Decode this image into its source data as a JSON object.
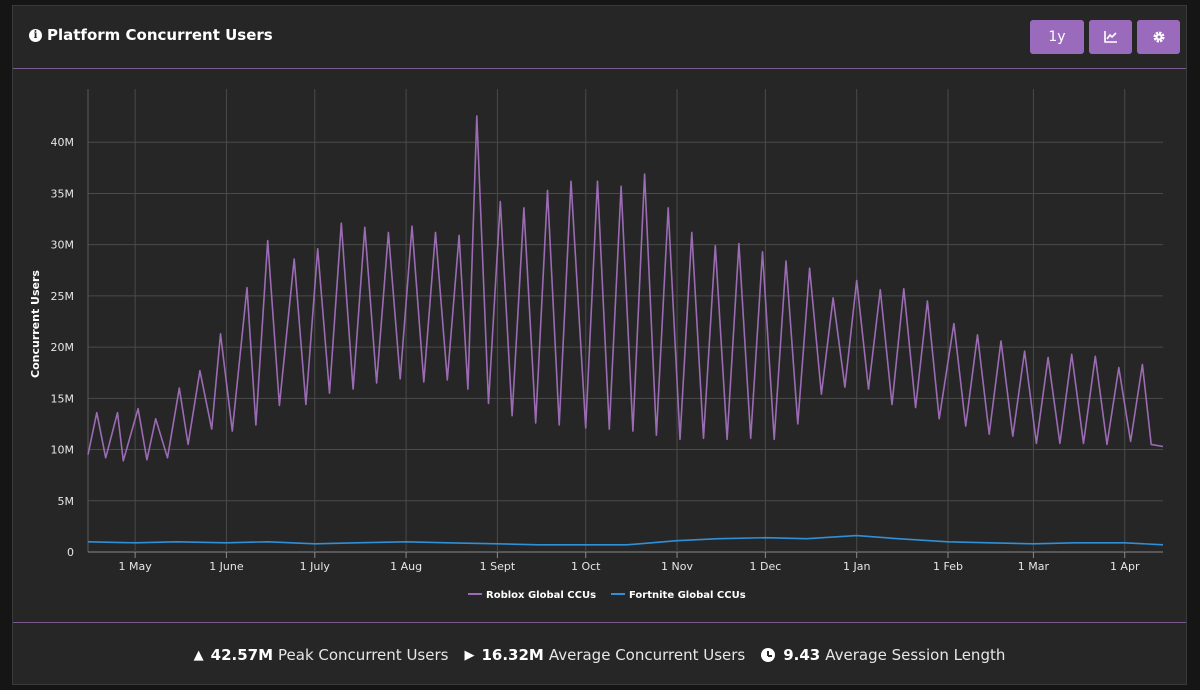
{
  "header": {
    "title": "Platform Concurrent Users",
    "range_button_label": "1y"
  },
  "stats": {
    "peak_value": "42.57M",
    "peak_label": "Peak Concurrent Users",
    "average_value": "16.32M",
    "average_label": "Average Concurrent Users",
    "session_value": "9.43",
    "session_label": "Average Session Length"
  },
  "chart_data": {
    "type": "line",
    "title": "",
    "ylabel": "Concurrent Users",
    "xlabel": "",
    "ylim": [
      0,
      45000000
    ],
    "ytick_values": [
      0,
      5000000,
      10000000,
      15000000,
      20000000,
      25000000,
      30000000,
      35000000,
      40000000
    ],
    "ytick_labels": [
      "0",
      "5M",
      "10M",
      "15M",
      "20M",
      "25M",
      "30M",
      "35M",
      "40M"
    ],
    "x_start": "2023-04-15",
    "x_end": "2024-04-14",
    "x_ticks": [
      {
        "date": "2023-05-01",
        "label": "1 May"
      },
      {
        "date": "2023-06-01",
        "label": "1 June"
      },
      {
        "date": "2023-07-01",
        "label": "1 July"
      },
      {
        "date": "2023-08-01",
        "label": "1 Aug"
      },
      {
        "date": "2023-09-01",
        "label": "1 Sept"
      },
      {
        "date": "2023-10-01",
        "label": "1 Oct"
      },
      {
        "date": "2023-11-01",
        "label": "1 Nov"
      },
      {
        "date": "2023-12-01",
        "label": "1 Dec"
      },
      {
        "date": "2024-01-01",
        "label": "1 Jan"
      },
      {
        "date": "2024-02-01",
        "label": "1 Feb"
      },
      {
        "date": "2024-03-01",
        "label": "1 Mar"
      },
      {
        "date": "2024-04-01",
        "label": "1 Apr"
      }
    ],
    "grid": true,
    "legend": "bottom-center",
    "series": [
      {
        "name": "Roblox Global CCUs",
        "color": "#9b6bb3",
        "points": [
          [
            "2023-04-15",
            9500000
          ],
          [
            "2023-04-18",
            13600000
          ],
          [
            "2023-04-21",
            9200000
          ],
          [
            "2023-04-25",
            13600000
          ],
          [
            "2023-04-27",
            8900000
          ],
          [
            "2023-05-02",
            14000000
          ],
          [
            "2023-05-05",
            9000000
          ],
          [
            "2023-05-08",
            13000000
          ],
          [
            "2023-05-12",
            9200000
          ],
          [
            "2023-05-16",
            16000000
          ],
          [
            "2023-05-19",
            10500000
          ],
          [
            "2023-05-23",
            17700000
          ],
          [
            "2023-05-27",
            12000000
          ],
          [
            "2023-05-30",
            21300000
          ],
          [
            "2023-06-03",
            11800000
          ],
          [
            "2023-06-08",
            25800000
          ],
          [
            "2023-06-11",
            12400000
          ],
          [
            "2023-06-15",
            30400000
          ],
          [
            "2023-06-19",
            14300000
          ],
          [
            "2023-06-24",
            28600000
          ],
          [
            "2023-06-28",
            14400000
          ],
          [
            "2023-07-02",
            29600000
          ],
          [
            "2023-07-06",
            15500000
          ],
          [
            "2023-07-10",
            32100000
          ],
          [
            "2023-07-14",
            15900000
          ],
          [
            "2023-07-18",
            31700000
          ],
          [
            "2023-07-22",
            16500000
          ],
          [
            "2023-07-26",
            31200000
          ],
          [
            "2023-07-30",
            16900000
          ],
          [
            "2023-08-03",
            31800000
          ],
          [
            "2023-08-07",
            16600000
          ],
          [
            "2023-08-11",
            31200000
          ],
          [
            "2023-08-15",
            16800000
          ],
          [
            "2023-08-19",
            30900000
          ],
          [
            "2023-08-22",
            15900000
          ],
          [
            "2023-08-25",
            42570000
          ],
          [
            "2023-08-29",
            14500000
          ],
          [
            "2023-09-02",
            34200000
          ],
          [
            "2023-09-06",
            13300000
          ],
          [
            "2023-09-10",
            33600000
          ],
          [
            "2023-09-14",
            12600000
          ],
          [
            "2023-09-18",
            35300000
          ],
          [
            "2023-09-22",
            12400000
          ],
          [
            "2023-09-26",
            36200000
          ],
          [
            "2023-10-01",
            12100000
          ],
          [
            "2023-10-05",
            36200000
          ],
          [
            "2023-10-09",
            12000000
          ],
          [
            "2023-10-13",
            35700000
          ],
          [
            "2023-10-17",
            11800000
          ],
          [
            "2023-10-21",
            36900000
          ],
          [
            "2023-10-25",
            11400000
          ],
          [
            "2023-10-29",
            33600000
          ],
          [
            "2023-11-02",
            11000000
          ],
          [
            "2023-11-06",
            31200000
          ],
          [
            "2023-11-10",
            11100000
          ],
          [
            "2023-11-14",
            29900000
          ],
          [
            "2023-11-18",
            11000000
          ],
          [
            "2023-11-22",
            30100000
          ],
          [
            "2023-11-26",
            11100000
          ],
          [
            "2023-11-30",
            29300000
          ],
          [
            "2023-12-04",
            11000000
          ],
          [
            "2023-12-08",
            28400000
          ],
          [
            "2023-12-12",
            12500000
          ],
          [
            "2023-12-16",
            27700000
          ],
          [
            "2023-12-20",
            15400000
          ],
          [
            "2023-12-24",
            24800000
          ],
          [
            "2023-12-28",
            16100000
          ],
          [
            "2024-01-01",
            26500000
          ],
          [
            "2024-01-05",
            15900000
          ],
          [
            "2024-01-09",
            25600000
          ],
          [
            "2024-01-13",
            14400000
          ],
          [
            "2024-01-17",
            25700000
          ],
          [
            "2024-01-21",
            14100000
          ],
          [
            "2024-01-25",
            24500000
          ],
          [
            "2024-01-29",
            13000000
          ],
          [
            "2024-02-03",
            22300000
          ],
          [
            "2024-02-07",
            12300000
          ],
          [
            "2024-02-11",
            21200000
          ],
          [
            "2024-02-15",
            11500000
          ],
          [
            "2024-02-19",
            20600000
          ],
          [
            "2024-02-23",
            11300000
          ],
          [
            "2024-02-27",
            19600000
          ],
          [
            "2024-03-02",
            10600000
          ],
          [
            "2024-03-06",
            19000000
          ],
          [
            "2024-03-10",
            10600000
          ],
          [
            "2024-03-14",
            19300000
          ],
          [
            "2024-03-18",
            10600000
          ],
          [
            "2024-03-22",
            19100000
          ],
          [
            "2024-03-26",
            10500000
          ],
          [
            "2024-03-30",
            18000000
          ],
          [
            "2024-04-03",
            10800000
          ],
          [
            "2024-04-07",
            18300000
          ],
          [
            "2024-04-10",
            10500000
          ],
          [
            "2024-04-14",
            10300000
          ]
        ]
      },
      {
        "name": "Fortnite Global CCUs",
        "color": "#2f8fd8",
        "points": [
          [
            "2023-04-15",
            1000000
          ],
          [
            "2023-05-01",
            900000
          ],
          [
            "2023-05-15",
            1000000
          ],
          [
            "2023-06-01",
            900000
          ],
          [
            "2023-06-15",
            1000000
          ],
          [
            "2023-07-01",
            800000
          ],
          [
            "2023-07-15",
            900000
          ],
          [
            "2023-08-01",
            1000000
          ],
          [
            "2023-08-15",
            900000
          ],
          [
            "2023-09-01",
            800000
          ],
          [
            "2023-09-15",
            700000
          ],
          [
            "2023-10-01",
            700000
          ],
          [
            "2023-10-15",
            700000
          ],
          [
            "2023-11-01",
            1100000
          ],
          [
            "2023-11-15",
            1300000
          ],
          [
            "2023-12-01",
            1400000
          ],
          [
            "2023-12-15",
            1300000
          ],
          [
            "2024-01-01",
            1600000
          ],
          [
            "2024-01-15",
            1300000
          ],
          [
            "2024-02-01",
            1000000
          ],
          [
            "2024-02-15",
            900000
          ],
          [
            "2024-03-01",
            800000
          ],
          [
            "2024-03-15",
            900000
          ],
          [
            "2024-04-01",
            900000
          ],
          [
            "2024-04-14",
            700000
          ]
        ]
      }
    ]
  }
}
